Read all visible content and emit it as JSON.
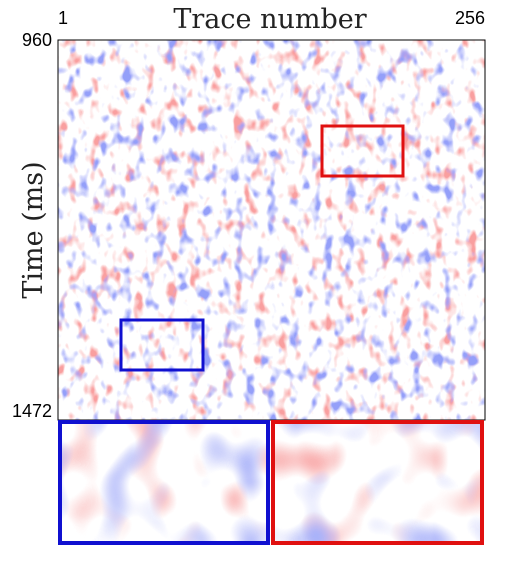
{
  "chart_data": {
    "type": "image",
    "title": "Trace number",
    "ylabel": "Time (ms)",
    "xlim": [
      1,
      256
    ],
    "xticks": [
      1,
      256
    ],
    "ylim": [
      960,
      1472
    ],
    "yticks": [
      960,
      1472
    ]
  }
}
